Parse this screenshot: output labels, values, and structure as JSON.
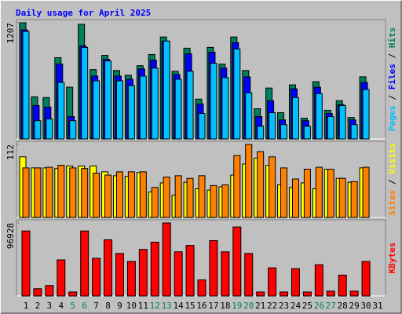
{
  "chart_data": {
    "type": "bar",
    "title": "Daily usage for April 2025",
    "legend_separator": " / ",
    "categories": [
      "1",
      "2",
      "3",
      "4",
      "5",
      "6",
      "7",
      "8",
      "9",
      "10",
      "11",
      "12",
      "13",
      "14",
      "15",
      "16",
      "17",
      "18",
      "19",
      "20",
      "21",
      "22",
      "23",
      "24",
      "25",
      "26",
      "27",
      "28",
      "29",
      "30",
      "31"
    ],
    "category_colors": [
      "#000000",
      "#000000",
      "#000000",
      "#000000",
      "#00805c",
      "#00805c",
      "#000000",
      "#000000",
      "#000000",
      "#000000",
      "#000000",
      "#00805c",
      "#00805c",
      "#000000",
      "#000000",
      "#000000",
      "#000000",
      "#000000",
      "#00805c",
      "#00805c",
      "#000000",
      "#000000",
      "#000000",
      "#000000",
      "#000000",
      "#00805c",
      "#00805c",
      "#000000",
      "#000000",
      "#000000",
      "#000000"
    ],
    "panels": [
      {
        "ylim": [
          0,
          1207
        ],
        "yticks": [
          1207
        ],
        "series": [
          {
            "name": "Hits",
            "color": "#00805c",
            "values": [
              1207,
              438,
              430,
              844,
              538,
              1191,
              720,
              868,
              711,
              662,
              761,
              877,
              1059,
              703,
              943,
              414,
              951,
              777,
              1059,
              711,
              314,
              529,
              273,
              562,
              215,
              595,
              298,
              397,
              223,
              645,
              0
            ]
          },
          {
            "name": "Files",
            "color": "#0000ff",
            "values": [
              1133,
              347,
              331,
              777,
              232,
              968,
              653,
              827,
              653,
              620,
              728,
              819,
              1017,
              670,
              885,
              364,
              901,
              736,
              1001,
              645,
              232,
              397,
              198,
              521,
              190,
              538,
              265,
              356,
              198,
              587,
              0
            ]
          },
          {
            "name": "Pages",
            "color": "#00c0ff",
            "values": [
              1116,
              190,
              207,
              587,
              190,
              951,
              604,
              810,
              604,
              554,
              653,
              736,
              1017,
              620,
              703,
              265,
              786,
              637,
              935,
              480,
              132,
              273,
              149,
              430,
              132,
              471,
              232,
              347,
              149,
              513,
              0
            ]
          }
        ]
      },
      {
        "ylim": [
          0,
          112
        ],
        "yticks": [
          112
        ],
        "series": [
          {
            "name": "Visits",
            "color": "#ffff00",
            "values": [
              93,
              76,
              76,
              75,
              79,
              79,
              79,
              70,
              64,
              63,
              69,
              39,
              53,
              34,
              54,
              44,
              42,
              47,
              65,
              82,
              91,
              80,
              50,
              46,
              53,
              44,
              74,
              60,
              54,
              76,
              0
            ]
          },
          {
            "name": "Sites",
            "color": "#ff8000",
            "values": [
              76,
              76,
              77,
              80,
              76,
              75,
              68,
              65,
              70,
              70,
              70,
              46,
              62,
              64,
              60,
              64,
              49,
              50,
              95,
              112,
              101,
              93,
              76,
              59,
              74,
              77,
              74,
              60,
              55,
              77,
              0
            ]
          }
        ]
      },
      {
        "ylim": [
          0,
          96928
        ],
        "yticks": [
          96928
        ],
        "series": [
          {
            "name": "KBytes",
            "color": "#ff0000",
            "values": [
              86300,
              9600,
              13800,
              47900,
              5300,
              86300,
              50000,
              74600,
              56400,
              45800,
              61800,
              71400,
              96928,
              58600,
              67100,
              21300,
              73500,
              58600,
              91600,
              56400,
              5300,
              37300,
              5300,
              36200,
              5300,
              41500,
              6400,
              27700,
              6400,
              45800,
              0
            ]
          }
        ]
      }
    ]
  }
}
